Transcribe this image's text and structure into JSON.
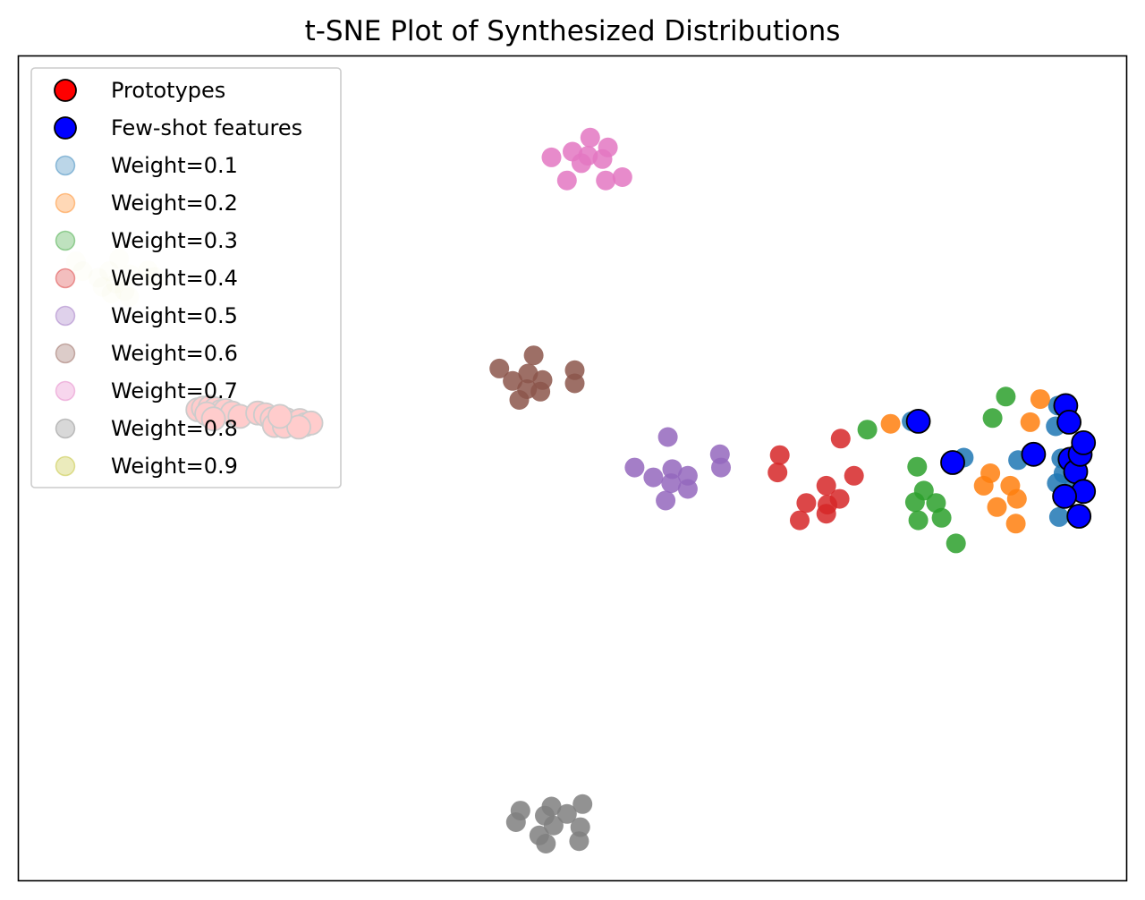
{
  "chart_data": {
    "type": "scatter",
    "title": "t-SNE Plot of Synthesized Distributions",
    "xlabel": "",
    "ylabel": "",
    "xticks": [],
    "yticks": [],
    "xlim": [
      0,
      100
    ],
    "ylim": [
      0,
      100
    ],
    "grid": false,
    "legend_position": "upper left",
    "series": [
      {
        "name": "Prototypes",
        "color": "#ff0000",
        "edge": "#000000",
        "size": "large",
        "alpha": 1.0,
        "points": [
          [
            16.2,
            57.1
          ],
          [
            16.7,
            57.3
          ],
          [
            17.3,
            57.4
          ],
          [
            17.8,
            57.2
          ],
          [
            18.3,
            56.9
          ],
          [
            17.0,
            56.6
          ],
          [
            18.7,
            57.0
          ],
          [
            19.3,
            56.7
          ],
          [
            20.0,
            56.3
          ],
          [
            17.6,
            56.0
          ],
          [
            21.6,
            56.7
          ],
          [
            22.3,
            56.5
          ],
          [
            22.9,
            56.0
          ],
          [
            23.5,
            55.8
          ],
          [
            24.2,
            55.9
          ],
          [
            24.8,
            55.5
          ],
          [
            25.4,
            55.8
          ],
          [
            25.9,
            55.3
          ],
          [
            26.4,
            55.5
          ],
          [
            23.1,
            55.2
          ],
          [
            24.0,
            55.1
          ],
          [
            25.3,
            55.0
          ],
          [
            23.6,
            56.3
          ]
        ]
      },
      {
        "name": "Few-shot features",
        "color": "#0000ff",
        "edge": "#000000",
        "size": "large",
        "alpha": 1.0,
        "points": [
          [
            81.2,
            55.7
          ],
          [
            84.3,
            50.7
          ],
          [
            91.6,
            51.7
          ],
          [
            94.5,
            57.6
          ],
          [
            94.8,
            55.6
          ],
          [
            94.9,
            51.1
          ],
          [
            95.4,
            49.6
          ],
          [
            95.8,
            51.7
          ],
          [
            96.1,
            47.2
          ],
          [
            95.7,
            44.2
          ],
          [
            96.1,
            53.1
          ],
          [
            94.4,
            46.6
          ]
        ]
      },
      {
        "name": "Weight=0.1",
        "color": "#1f77b4",
        "alpha": 0.85,
        "points": [
          [
            80.6,
            55.7
          ],
          [
            85.3,
            51.3
          ],
          [
            90.2,
            51.0
          ],
          [
            93.8,
            57.6
          ],
          [
            93.6,
            55.1
          ],
          [
            94.1,
            51.2
          ],
          [
            94.3,
            49.4
          ],
          [
            93.7,
            48.2
          ],
          [
            95.1,
            47.5
          ],
          [
            93.9,
            44.1
          ]
        ]
      },
      {
        "name": "Weight=0.2",
        "color": "#ff7f0e",
        "alpha": 0.85,
        "points": [
          [
            78.7,
            55.4
          ],
          [
            84.1,
            50.7
          ],
          [
            92.2,
            58.4
          ],
          [
            91.3,
            55.6
          ],
          [
            87.7,
            49.4
          ],
          [
            87.1,
            47.9
          ],
          [
            89.5,
            47.9
          ],
          [
            90.1,
            46.3
          ],
          [
            88.3,
            45.3
          ],
          [
            90.0,
            43.3
          ]
        ]
      },
      {
        "name": "Weight=0.3",
        "color": "#2ca02c",
        "alpha": 0.85,
        "points": [
          [
            76.6,
            54.7
          ],
          [
            89.1,
            58.7
          ],
          [
            87.9,
            56.1
          ],
          [
            81.1,
            50.2
          ],
          [
            81.7,
            47.3
          ],
          [
            80.9,
            45.9
          ],
          [
            82.8,
            45.8
          ],
          [
            81.2,
            43.7
          ],
          [
            83.3,
            44.0
          ],
          [
            84.6,
            40.9
          ]
        ]
      },
      {
        "name": "Weight=0.4",
        "color": "#d62728",
        "alpha": 0.85,
        "points": [
          [
            74.2,
            53.6
          ],
          [
            68.7,
            51.6
          ],
          [
            68.5,
            49.5
          ],
          [
            75.4,
            49.1
          ],
          [
            72.9,
            47.9
          ],
          [
            71.1,
            45.8
          ],
          [
            73.0,
            45.6
          ],
          [
            74.1,
            46.3
          ],
          [
            72.9,
            44.5
          ],
          [
            70.5,
            43.7
          ]
        ]
      },
      {
        "name": "Weight=0.5",
        "color": "#9467bd",
        "alpha": 0.85,
        "points": [
          [
            58.6,
            53.8
          ],
          [
            63.3,
            51.7
          ],
          [
            63.4,
            50.1
          ],
          [
            55.6,
            50.1
          ],
          [
            57.3,
            48.9
          ],
          [
            59.0,
            49.9
          ],
          [
            60.4,
            49.1
          ],
          [
            58.9,
            48.2
          ],
          [
            60.4,
            47.5
          ],
          [
            58.4,
            46.1
          ]
        ]
      },
      {
        "name": "Weight=0.6",
        "color": "#8c564b",
        "alpha": 0.85,
        "points": [
          [
            46.5,
            63.7
          ],
          [
            43.4,
            62.1
          ],
          [
            46.0,
            61.5
          ],
          [
            44.6,
            60.6
          ],
          [
            47.3,
            60.7
          ],
          [
            50.2,
            61.9
          ],
          [
            50.2,
            60.3
          ],
          [
            45.9,
            59.6
          ],
          [
            47.1,
            59.3
          ],
          [
            45.2,
            58.3
          ]
        ]
      },
      {
        "name": "Weight=0.7",
        "color": "#e377c2",
        "alpha": 0.85,
        "points": [
          [
            51.6,
            90.1
          ],
          [
            53.2,
            88.9
          ],
          [
            50.0,
            88.4
          ],
          [
            51.4,
            87.9
          ],
          [
            52.7,
            87.5
          ],
          [
            48.1,
            87.7
          ],
          [
            50.8,
            87.0
          ],
          [
            49.5,
            84.9
          ],
          [
            53.0,
            84.9
          ],
          [
            54.5,
            85.3
          ]
        ]
      },
      {
        "name": "Weight=0.8",
        "color": "#7f7f7f",
        "alpha": 0.85,
        "points": [
          [
            50.9,
            9.3
          ],
          [
            48.1,
            9.0
          ],
          [
            45.3,
            8.5
          ],
          [
            47.5,
            7.9
          ],
          [
            49.5,
            8.1
          ],
          [
            44.9,
            7.1
          ],
          [
            48.3,
            6.7
          ],
          [
            50.7,
            6.5
          ],
          [
            47.0,
            5.5
          ],
          [
            50.6,
            4.8
          ],
          [
            47.6,
            4.5
          ]
        ]
      },
      {
        "name": "Weight=0.9",
        "color": "#bcbd22",
        "alpha": 0.12,
        "points": [
          [
            5.2,
            75.1
          ],
          [
            9.1,
            75.4
          ],
          [
            5.8,
            73.9
          ],
          [
            8.2,
            73.9
          ],
          [
            11.7,
            74.0
          ],
          [
            7.2,
            73.1
          ],
          [
            8.8,
            72.4
          ],
          [
            10.1,
            73.5
          ],
          [
            7.6,
            72.0
          ],
          [
            9.6,
            71.5
          ],
          [
            10.0,
            70.8
          ],
          [
            8.4,
            71.2
          ],
          [
            12.3,
            73.2
          ]
        ]
      }
    ]
  }
}
